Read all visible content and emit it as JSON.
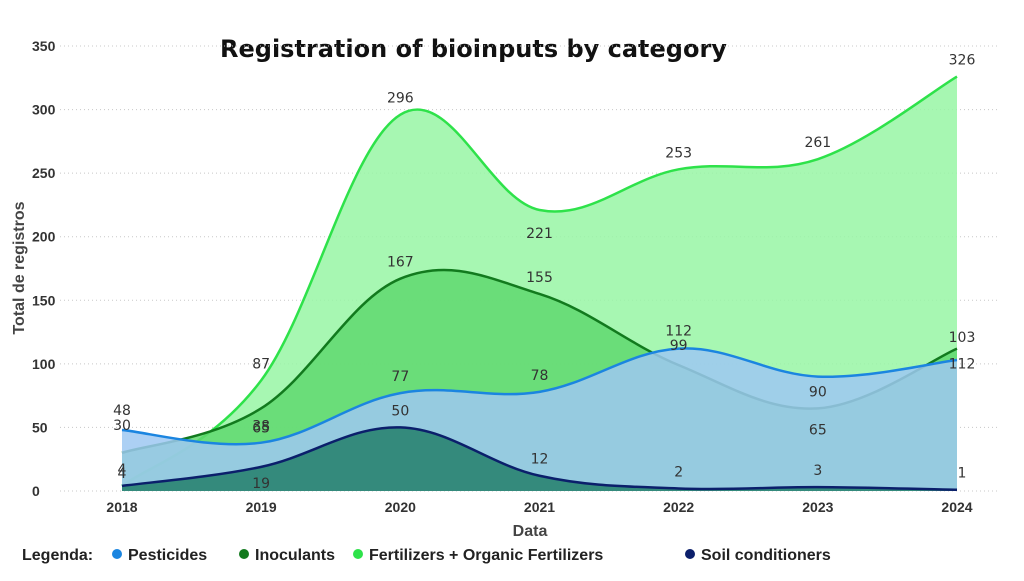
{
  "chart_data": {
    "type": "area",
    "title": "Registration of bioinputs by category",
    "xlabel": "Data",
    "ylabel": "Total de registros",
    "categories": [
      "2018",
      "2019",
      "2020",
      "2021",
      "2022",
      "2023",
      "2024"
    ],
    "ylim": [
      0,
      350
    ],
    "yticks": [
      0,
      50,
      100,
      150,
      200,
      250,
      300,
      350
    ],
    "grid": true,
    "legend_title": "Legenda:",
    "legend_position": "bottom",
    "series": [
      {
        "name": "Fertilizers + Organic Fertilizers",
        "color": "#2EE24A",
        "fill": "#98F6A5",
        "values": [
          4,
          87,
          296,
          221,
          253,
          261,
          326
        ]
      },
      {
        "name": "Inoculants",
        "color": "#127A1E",
        "fill": "#5FD86F",
        "values": [
          30,
          65,
          167,
          155,
          99,
          65,
          112
        ]
      },
      {
        "name": "Pesticides",
        "color": "#1B85E0",
        "fill": "#9DC8F2",
        "values": [
          48,
          38,
          77,
          78,
          112,
          90,
          103
        ]
      },
      {
        "name": "Soil conditioners",
        "color": "#0B1F6B",
        "fill": "#237F6A",
        "values": [
          4,
          19,
          50,
          12,
          2,
          3,
          1
        ]
      }
    ],
    "legend_order": [
      "Pesticides",
      "Inoculants",
      "Fertilizers + Organic Fertilizers",
      "Soil conditioners"
    ]
  }
}
